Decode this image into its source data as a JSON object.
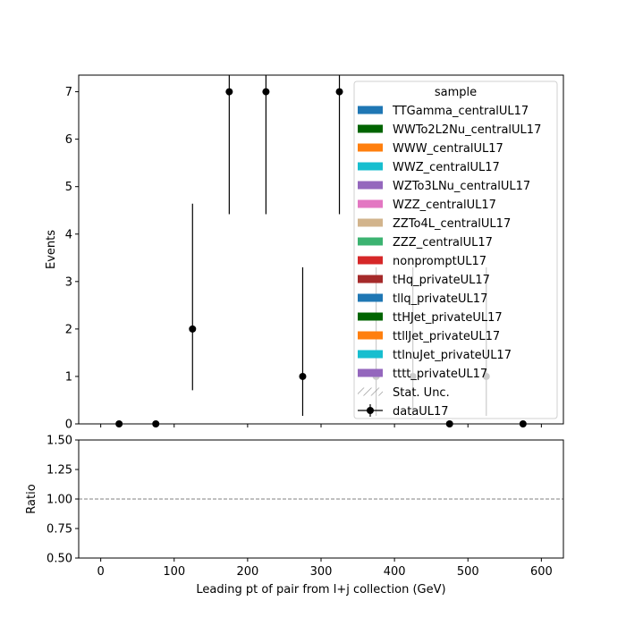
{
  "chart_data": [
    {
      "type": "scatter",
      "title": "",
      "xlabel": "",
      "ylabel": "Events",
      "xlim": [
        -30,
        630
      ],
      "ylim": [
        0,
        7.35
      ],
      "yticks": [
        0,
        1,
        2,
        3,
        4,
        5,
        6,
        7
      ],
      "grid": false,
      "legend": {
        "title": "sample",
        "placement": "upper right",
        "entries": [
          {
            "label": "TTGamma_centralUL17",
            "color": "#1f77b4",
            "kind": "patch"
          },
          {
            "label": "WWTo2L2Nu_centralUL17",
            "color": "#006400",
            "kind": "patch"
          },
          {
            "label": "WWW_centralUL17",
            "color": "#ff7f0e",
            "kind": "patch"
          },
          {
            "label": "WWZ_centralUL17",
            "color": "#17becf",
            "kind": "patch"
          },
          {
            "label": "WZTo3LNu_centralUL17",
            "color": "#9467bd",
            "kind": "patch"
          },
          {
            "label": "WZZ_centralUL17",
            "color": "#e377c2",
            "kind": "patch"
          },
          {
            "label": "ZZTo4L_centralUL17",
            "color": "#d2b48c",
            "kind": "patch"
          },
          {
            "label": "ZZZ_centralUL17",
            "color": "#3cb371",
            "kind": "patch"
          },
          {
            "label": "nonpromptUL17",
            "color": "#d62728",
            "kind": "patch"
          },
          {
            "label": "tHq_privateUL17",
            "color": "#a52a2a",
            "kind": "patch"
          },
          {
            "label": "tllq_privateUL17",
            "color": "#1f77b4",
            "kind": "patch"
          },
          {
            "label": "ttHJet_privateUL17",
            "color": "#006400",
            "kind": "patch"
          },
          {
            "label": "ttllJet_privateUL17",
            "color": "#ff7f0e",
            "kind": "patch"
          },
          {
            "label": "ttlnuJet_privateUL17",
            "color": "#17becf",
            "kind": "patch"
          },
          {
            "label": "tttt_privateUL17",
            "color": "#9467bd",
            "kind": "patch"
          },
          {
            "label": "Stat. Unc.",
            "color": "#888888",
            "kind": "hatch"
          },
          {
            "label": "dataUL17",
            "color": "#000000",
            "kind": "errorbar"
          }
        ]
      },
      "series": [
        {
          "name": "dataUL17",
          "x": [
            25,
            75,
            125,
            175,
            225,
            275,
            325,
            375,
            425,
            475,
            525,
            575
          ],
          "y": [
            0,
            0,
            2,
            7,
            7,
            1,
            7,
            1,
            1,
            0,
            1,
            0
          ],
          "yerr_low": [
            0,
            0,
            1.29,
            2.58,
            2.58,
            0.83,
            2.58,
            0.83,
            0.83,
            0,
            0.83,
            0
          ],
          "yerr_high": [
            0,
            0,
            2.64,
            3.77,
            3.77,
            2.3,
            3.77,
            2.3,
            2.3,
            0,
            2.3,
            0
          ]
        }
      ]
    },
    {
      "type": "line",
      "title": "",
      "xlabel": "Leading pt of pair from l+j collection (GeV)",
      "ylabel": "Ratio",
      "xlim": [
        -30,
        630
      ],
      "ylim": [
        0.5,
        1.5
      ],
      "xticks": [
        0,
        100,
        200,
        300,
        400,
        500,
        600
      ],
      "yticks": [
        "0.50",
        "0.75",
        "1.00",
        "1.25",
        "1.50"
      ],
      "reference_line": 1.0,
      "grid": false
    }
  ]
}
